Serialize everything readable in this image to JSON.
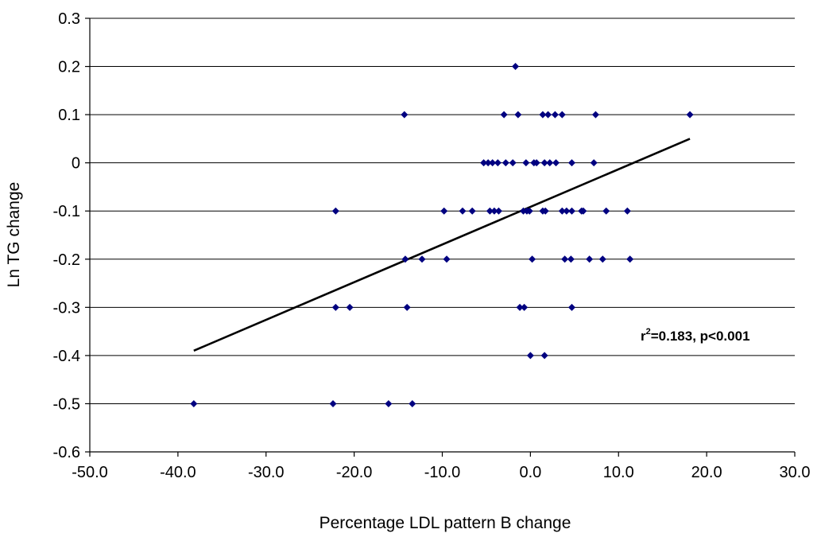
{
  "chart_data": {
    "type": "scatter",
    "title": "",
    "xlabel": "Percentage LDL pattern B change",
    "ylabel": "Ln TG change",
    "xlim": [
      -50,
      30
    ],
    "ylim": [
      -0.6,
      0.3
    ],
    "x_ticks": [
      "-50.0",
      "-40.0",
      "-30.0",
      "-20.0",
      "-10.0",
      "0.0",
      "10.0",
      "20.0",
      "30.0"
    ],
    "x_tick_values": [
      -50,
      -40,
      -30,
      -20,
      -10,
      0,
      10,
      20,
      30
    ],
    "y_ticks": [
      "-0.6",
      "-0.5",
      "-0.4",
      "-0.3",
      "-0.2",
      "-0.1",
      "0",
      "0.1",
      "0.2",
      "0.3"
    ],
    "y_tick_values": [
      -0.6,
      -0.5,
      -0.4,
      -0.3,
      -0.2,
      -0.1,
      0,
      0.1,
      0.2,
      0.3
    ],
    "grid": "horizontal",
    "marker_color": "#000080",
    "annotation": {
      "r_symbol": "r",
      "superscript": "2",
      "rest": "=0.183, p<0.001"
    },
    "trendline": {
      "x": [
        -38.2,
        18.1
      ],
      "y": [
        -0.39,
        0.05
      ]
    },
    "points": [
      {
        "x": -1.7,
        "y": 0.2
      },
      {
        "x": -14.3,
        "y": 0.1
      },
      {
        "x": -3.0,
        "y": 0.1
      },
      {
        "x": -1.4,
        "y": 0.1
      },
      {
        "x": 1.4,
        "y": 0.1
      },
      {
        "x": 2.0,
        "y": 0.1
      },
      {
        "x": 2.8,
        "y": 0.1
      },
      {
        "x": 3.6,
        "y": 0.1
      },
      {
        "x": 7.4,
        "y": 0.1
      },
      {
        "x": 18.1,
        "y": 0.1
      },
      {
        "x": -5.3,
        "y": 0.0
      },
      {
        "x": -4.8,
        "y": 0.0
      },
      {
        "x": -4.3,
        "y": 0.0
      },
      {
        "x": -3.7,
        "y": 0.0
      },
      {
        "x": -2.8,
        "y": 0.0
      },
      {
        "x": -2.0,
        "y": 0.0
      },
      {
        "x": -0.5,
        "y": 0.0
      },
      {
        "x": 0.4,
        "y": 0.0
      },
      {
        "x": 0.7,
        "y": 0.0
      },
      {
        "x": 1.6,
        "y": 0.0
      },
      {
        "x": 2.2,
        "y": 0.0
      },
      {
        "x": 2.9,
        "y": 0.0
      },
      {
        "x": 4.7,
        "y": 0.0
      },
      {
        "x": 7.2,
        "y": 0.0
      },
      {
        "x": -22.1,
        "y": -0.1
      },
      {
        "x": -9.8,
        "y": -0.1
      },
      {
        "x": -7.7,
        "y": -0.1
      },
      {
        "x": -6.6,
        "y": -0.1
      },
      {
        "x": -4.6,
        "y": -0.1
      },
      {
        "x": -4.1,
        "y": -0.1
      },
      {
        "x": -3.6,
        "y": -0.1
      },
      {
        "x": -0.8,
        "y": -0.1
      },
      {
        "x": -0.4,
        "y": -0.1
      },
      {
        "x": -0.1,
        "y": -0.1
      },
      {
        "x": 1.4,
        "y": -0.1
      },
      {
        "x": 1.7,
        "y": -0.1
      },
      {
        "x": 3.6,
        "y": -0.1
      },
      {
        "x": 4.1,
        "y": -0.1
      },
      {
        "x": 4.7,
        "y": -0.1
      },
      {
        "x": 5.8,
        "y": -0.1
      },
      {
        "x": 6.0,
        "y": -0.1
      },
      {
        "x": 8.6,
        "y": -0.1
      },
      {
        "x": 11.0,
        "y": -0.1
      },
      {
        "x": -14.2,
        "y": -0.2
      },
      {
        "x": -12.3,
        "y": -0.2
      },
      {
        "x": -9.5,
        "y": -0.2
      },
      {
        "x": 0.2,
        "y": -0.2
      },
      {
        "x": 3.9,
        "y": -0.2
      },
      {
        "x": 4.6,
        "y": -0.2
      },
      {
        "x": 6.7,
        "y": -0.2
      },
      {
        "x": 8.2,
        "y": -0.2
      },
      {
        "x": 11.3,
        "y": -0.2
      },
      {
        "x": -22.1,
        "y": -0.3
      },
      {
        "x": -20.5,
        "y": -0.3
      },
      {
        "x": -14.0,
        "y": -0.3
      },
      {
        "x": -1.2,
        "y": -0.3
      },
      {
        "x": -0.7,
        "y": -0.3
      },
      {
        "x": 4.7,
        "y": -0.3
      },
      {
        "x": 0.0,
        "y": -0.4
      },
      {
        "x": 1.6,
        "y": -0.4
      },
      {
        "x": -38.2,
        "y": -0.5
      },
      {
        "x": -22.4,
        "y": -0.5
      },
      {
        "x": -16.1,
        "y": -0.5
      },
      {
        "x": -13.4,
        "y": -0.5
      }
    ]
  }
}
